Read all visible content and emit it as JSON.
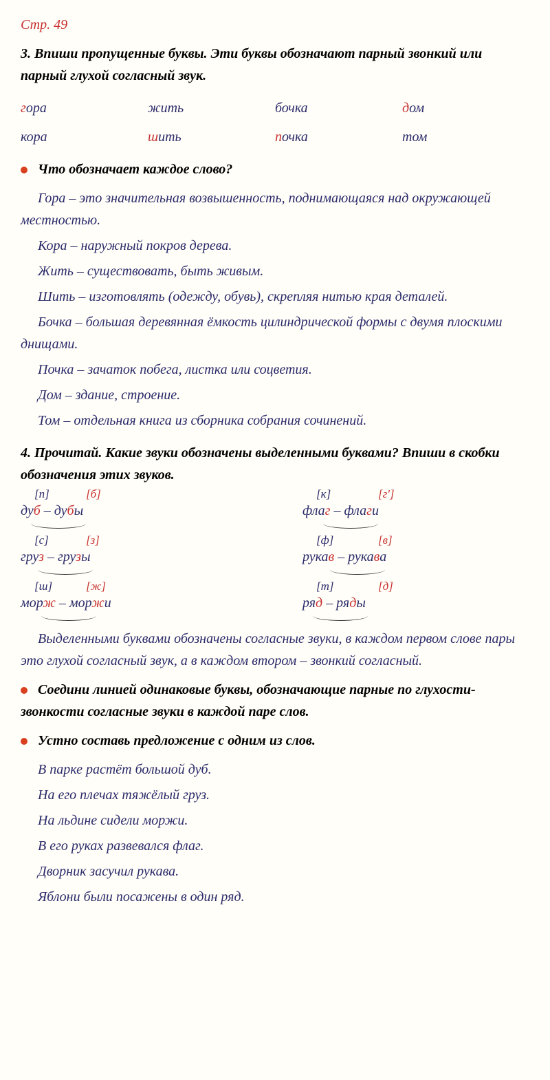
{
  "pageNumber": "Стр. 49",
  "task3": {
    "number": "3.",
    "text": "Впиши пропущенные буквы. Эти буквы обозначают парный звонкий или парный глухой согласный звук.",
    "wordPairs": [
      {
        "hl1": "г",
        "rest1": "ора",
        "hl2": "",
        "full2": "кора"
      },
      {
        "hl1": "",
        "full1": "жить",
        "hl2": "ш",
        "rest2": "ить"
      },
      {
        "hl1": "",
        "full1": "бочка",
        "hl2": "п",
        "rest2": "очка"
      },
      {
        "hl1": "д",
        "rest1": "ом",
        "hl2": "",
        "full2": "том"
      }
    ],
    "question": "Что обозначает каждое слово?",
    "definitions": [
      "Гора – это значительная возвышенность, поднимающаяся над окружающей местностью.",
      "Кора – наружный покров дерева.",
      "Жить – существовать, быть живым.",
      "Шить – изготовлять (одежду, обувь), скрепляя нитью края деталей.",
      "Бочка – большая деревянная ёмкость цилиндрической формы с двумя плоскими днищами.",
      "Почка – зачаток побега, листка или соцветия.",
      "Дом – здание, строение.",
      "Том – отдельная книга из сборника собрания сочинений."
    ]
  },
  "task4": {
    "number": "4.",
    "text": "Прочитай. Какие звуки обозначены выделенными буквами? Впиши в скобки обозначения этих звуков.",
    "pairsLeft": [
      {
        "s1": "[п]",
        "s2": "[б]",
        "w1pre": "ду",
        "w1hl": "б",
        "w1post": "",
        "w2pre": "ду",
        "w2hl": "б",
        "w2post": "ы",
        "arcLeft": 15
      },
      {
        "s1": "[с]",
        "s2": "[з]",
        "w1pre": "гру",
        "w1hl": "з",
        "w1post": "",
        "w2pre": "гру",
        "w2hl": "з",
        "w2post": "ы",
        "arcLeft": 25
      },
      {
        "s1": "[ш]",
        "s2": "[ж]",
        "w1pre": "мор",
        "w1hl": "ж",
        "w1post": "",
        "w2pre": "мор",
        "w2hl": "ж",
        "w2post": "и",
        "arcLeft": 30
      }
    ],
    "pairsRight": [
      {
        "s1": "[к]",
        "s2": "[г']",
        "w1pre": "фла",
        "w1hl": "г",
        "w1post": "",
        "w2pre": "фла",
        "w2hl": "г",
        "w2post": "и",
        "arcLeft": 30
      },
      {
        "s1": "[ф]",
        "s2": "[в]",
        "w1pre": "рука",
        "w1hl": "в",
        "w1post": "",
        "w2pre": "рука",
        "w2hl": "в",
        "w2post": "а",
        "arcLeft": 40
      },
      {
        "s1": "[т]",
        "s2": "[д]",
        "w1pre": "ря",
        "w1hl": "д",
        "w1post": "",
        "w2pre": "ря",
        "w2hl": "д",
        "w2post": "ы",
        "arcLeft": 15
      }
    ],
    "explanation": "Выделенными буквами обозначены согласные звуки, в каждом первом слове пары это глухой согласный звук, а в каждом втором – звонкий согласный.",
    "bullet2": "Соедини линией одинаковые буквы, обозначающие парные по глухости-звонкости согласные звуки в каждой паре слов.",
    "bullet3": "Устно составь предложение с одним из слов.",
    "sentences": [
      "В парке растёт большой дуб.",
      "На его плечах тяжёлый груз.",
      "На льдине сидели моржи.",
      "В его руках развевался флаг.",
      "Дворник засучил рукава.",
      "Яблони были посажены в один ряд."
    ]
  }
}
